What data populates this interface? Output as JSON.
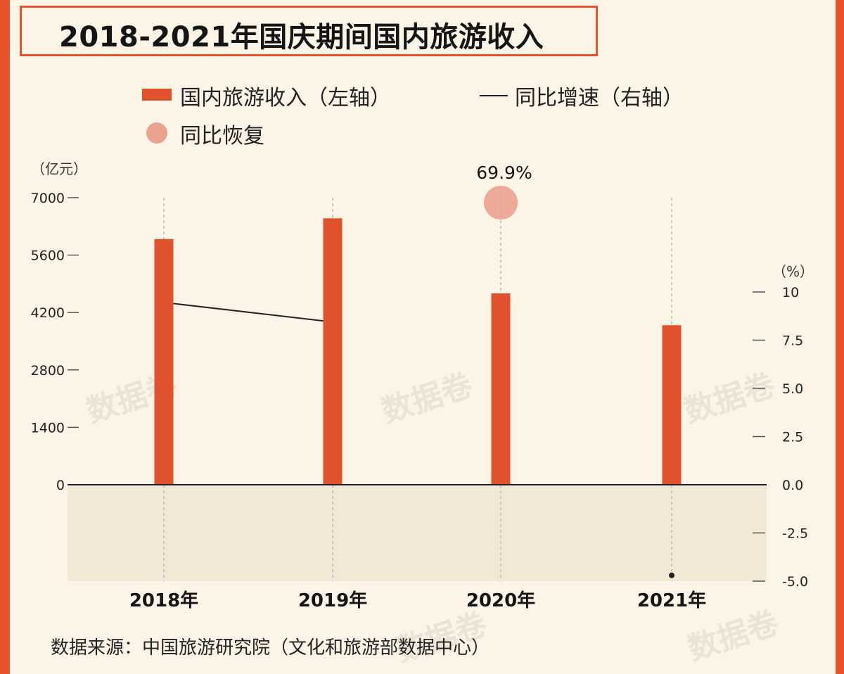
{
  "chart_data": {
    "type": "bar",
    "title": "2018-2021年国庆期间国内旅游收入",
    "categories": [
      "2018年",
      "2019年",
      "2020年",
      "2021年"
    ],
    "series": [
      {
        "name": "国内旅游收入（左轴）",
        "axis": "left",
        "type": "bar",
        "values": [
          5990.8,
          6497.1,
          4665.6,
          3890.6
        ],
        "color": "#e0522b"
      },
      {
        "name": "同比增速（右轴）",
        "axis": "right",
        "type": "line",
        "values": [
          9.4,
          8.5,
          null,
          -4.7
        ],
        "color": "#222222"
      }
    ],
    "recovery_marker": {
      "label": "同比恢复",
      "category": "2020年",
      "value_text": "69.9%",
      "color": "#eba28f"
    },
    "left_axis": {
      "unit": "（亿元）",
      "ticks": [
        0,
        1400,
        2800,
        4200,
        5600,
        7000
      ],
      "ylim": [
        0,
        7000
      ]
    },
    "right_axis": {
      "unit": "（%）",
      "ticks": [
        "10",
        "7.5",
        "5.0",
        "2.5",
        "0.0",
        "-2.5",
        "-5.0"
      ],
      "ylim": [
        -5,
        10
      ]
    },
    "legend_position": "top"
  },
  "legend": {
    "bar_label": "国内旅游收入（左轴）",
    "line_label": "同比增速（右轴）",
    "dot_label": "同比恢复"
  },
  "source_text": "数据来源：中国旅游研究院（文化和旅游部数据中心）",
  "watermark_text": "数据卷"
}
